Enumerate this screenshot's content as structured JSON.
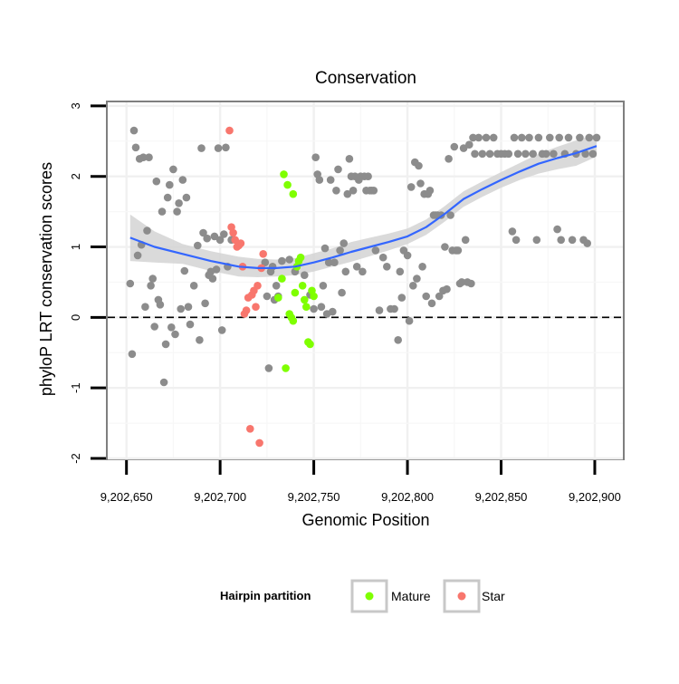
{
  "chart_data": {
    "type": "scatter",
    "title": "Conservation",
    "xlabel": "Genomic Position",
    "ylabel": "phyloP LRT conservation scores",
    "xlim": [
      9202640,
      9202915
    ],
    "ylim": [
      -2,
      3.05
    ],
    "x_ticks": [
      9202650,
      9202700,
      9202750,
      9202800,
      9202850,
      9202900
    ],
    "x_tick_labels": [
      "9,202,650",
      "9,202,700",
      "9,202,750",
      "9,202,800",
      "9,202,850",
      "9,202,900"
    ],
    "y_ticks": [
      -2,
      -1,
      0,
      1,
      2,
      3
    ],
    "y_tick_labels": [
      "-2",
      "-1",
      "0",
      "1",
      "2",
      "3"
    ],
    "reference_line": {
      "y": 0,
      "style": "dashed"
    },
    "legend": {
      "title": "Hairpin partition",
      "entries": [
        {
          "label": "Mature",
          "color": "#7fff00"
        },
        {
          "label": "Star",
          "color": "#f8766d"
        }
      ]
    },
    "colors": {
      "other": "#8c8c8c",
      "Mature": "#7fff00",
      "Star": "#f8766d",
      "smooth": "#3366ff",
      "band": "#d3d3d3"
    },
    "series": [
      {
        "name": "other",
        "points": [
          [
            9202652,
            0.48
          ],
          [
            9202653,
            -0.52
          ],
          [
            9202654,
            2.65
          ],
          [
            9202655,
            2.41
          ],
          [
            9202656,
            0.88
          ],
          [
            9202657,
            2.25
          ],
          [
            9202658,
            1.03
          ],
          [
            9202659,
            2.27
          ],
          [
            9202660,
            0.15
          ],
          [
            9202661,
            1.23
          ],
          [
            9202662,
            2.27
          ],
          [
            9202663,
            0.45
          ],
          [
            9202664,
            0.55
          ],
          [
            9202665,
            -0.13
          ],
          [
            9202666,
            1.93
          ],
          [
            9202667,
            0.25
          ],
          [
            9202668,
            0.18
          ],
          [
            9202669,
            1.5
          ],
          [
            9202670,
            -0.92
          ],
          [
            9202671,
            -0.38
          ],
          [
            9202672,
            1.7
          ],
          [
            9202673,
            1.88
          ],
          [
            9202674,
            -0.14
          ],
          [
            9202675,
            2.1
          ],
          [
            9202676,
            -0.24
          ],
          [
            9202677,
            1.5
          ],
          [
            9202678,
            1.62
          ],
          [
            9202679,
            0.12
          ],
          [
            9202680,
            1.95
          ],
          [
            9202681,
            0.66
          ],
          [
            9202682,
            1.7
          ],
          [
            9202683,
            0.15
          ],
          [
            9202684,
            -0.1
          ],
          [
            9202686,
            0.45
          ],
          [
            9202688,
            1.02
          ],
          [
            9202689,
            -0.32
          ],
          [
            9202690,
            2.4
          ],
          [
            9202691,
            1.2
          ],
          [
            9202692,
            0.2
          ],
          [
            9202693,
            1.12
          ],
          [
            9202694,
            0.6
          ],
          [
            9202695,
            0.65
          ],
          [
            9202696,
            0.55
          ],
          [
            9202697,
            1.15
          ],
          [
            9202698,
            0.68
          ],
          [
            9202699,
            2.4
          ],
          [
            9202700,
            1.1
          ],
          [
            9202701,
            -0.18
          ],
          [
            9202702,
            1.18
          ],
          [
            9202703,
            2.41
          ],
          [
            9202704,
            0.72
          ],
          [
            9202706,
            1.1
          ],
          [
            9202724,
            0.78
          ],
          [
            9202725,
            0.3
          ],
          [
            9202726,
            -0.72
          ],
          [
            9202727,
            0.65
          ],
          [
            9202728,
            0.72
          ],
          [
            9202729,
            0.25
          ],
          [
            9202730,
            0.45
          ],
          [
            9202731,
            0.3
          ],
          [
            9202733,
            0.8
          ],
          [
            9202737,
            0.82
          ],
          [
            9202740,
            0.65
          ],
          [
            9202745,
            0.6
          ],
          [
            9202748,
            0.32
          ],
          [
            9202750,
            0.12
          ],
          [
            9202751,
            2.27
          ],
          [
            9202752,
            2.03
          ],
          [
            9202753,
            1.95
          ],
          [
            9202754,
            0.15
          ],
          [
            9202755,
            0.45
          ],
          [
            9202756,
            0.98
          ],
          [
            9202757,
            0.05
          ],
          [
            9202758,
            0.78
          ],
          [
            9202759,
            1.95
          ],
          [
            9202760,
            0.08
          ],
          [
            9202761,
            0.78
          ],
          [
            9202762,
            1.8
          ],
          [
            9202763,
            2.1
          ],
          [
            9202764,
            0.95
          ],
          [
            9202765,
            0.35
          ],
          [
            9202766,
            1.05
          ],
          [
            9202767,
            0.65
          ],
          [
            9202768,
            1.75
          ],
          [
            9202769,
            2.25
          ],
          [
            9202770,
            2.0
          ],
          [
            9202771,
            1.8
          ],
          [
            9202772,
            2.0
          ],
          [
            9202773,
            0.72
          ],
          [
            9202774,
            1.95
          ],
          [
            9202775,
            2.0
          ],
          [
            9202776,
            0.65
          ],
          [
            9202777,
            2.0
          ],
          [
            9202778,
            1.8
          ],
          [
            9202779,
            2.0
          ],
          [
            9202780,
            1.8
          ],
          [
            9202781,
            1.8
          ],
          [
            9202782,
            1.8
          ],
          [
            9202783,
            0.95
          ],
          [
            9202785,
            0.1
          ],
          [
            9202787,
            0.85
          ],
          [
            9202789,
            0.72
          ],
          [
            9202791,
            0.12
          ],
          [
            9202793,
            0.12
          ],
          [
            9202795,
            -0.32
          ],
          [
            9202796,
            0.65
          ],
          [
            9202797,
            0.28
          ],
          [
            9202798,
            0.95
          ],
          [
            9202800,
            0.88
          ],
          [
            9202801,
            -0.05
          ],
          [
            9202802,
            1.85
          ],
          [
            9202803,
            0.45
          ],
          [
            9202804,
            2.2
          ],
          [
            9202805,
            0.55
          ],
          [
            9202806,
            2.15
          ],
          [
            9202807,
            1.9
          ],
          [
            9202808,
            0.72
          ],
          [
            9202809,
            1.75
          ],
          [
            9202810,
            0.3
          ],
          [
            9202811,
            1.75
          ],
          [
            9202812,
            1.8
          ],
          [
            9202813,
            0.2
          ],
          [
            9202814,
            1.45
          ],
          [
            9202815,
            1.45
          ],
          [
            9202816,
            1.45
          ],
          [
            9202817,
            0.3
          ],
          [
            9202818,
            1.45
          ],
          [
            9202819,
            0.38
          ],
          [
            9202820,
            1.0
          ],
          [
            9202821,
            0.4
          ],
          [
            9202822,
            2.25
          ],
          [
            9202823,
            1.45
          ],
          [
            9202824,
            0.95
          ],
          [
            9202825,
            2.42
          ],
          [
            9202826,
            0.95
          ],
          [
            9202827,
            0.95
          ],
          [
            9202828,
            0.48
          ],
          [
            9202829,
            0.5
          ],
          [
            9202830,
            2.4
          ],
          [
            9202831,
            1.1
          ],
          [
            9202832,
            0.5
          ],
          [
            9202833,
            2.45
          ],
          [
            9202834,
            0.48
          ],
          [
            9202835,
            2.55
          ],
          [
            9202836,
            2.32
          ],
          [
            9202838,
            2.55
          ],
          [
            9202840,
            2.32
          ],
          [
            9202842,
            2.55
          ],
          [
            9202844,
            2.32
          ],
          [
            9202846,
            2.55
          ],
          [
            9202848,
            2.32
          ],
          [
            9202850,
            2.32
          ],
          [
            9202852,
            2.32
          ],
          [
            9202854,
            2.32
          ],
          [
            9202856,
            1.22
          ],
          [
            9202857,
            2.55
          ],
          [
            9202858,
            1.1
          ],
          [
            9202859,
            2.32
          ],
          [
            9202861,
            2.55
          ],
          [
            9202863,
            2.32
          ],
          [
            9202865,
            2.55
          ],
          [
            9202867,
            2.32
          ],
          [
            9202869,
            1.1
          ],
          [
            9202870,
            2.55
          ],
          [
            9202872,
            2.32
          ],
          [
            9202874,
            2.32
          ],
          [
            9202876,
            2.55
          ],
          [
            9202878,
            2.32
          ],
          [
            9202880,
            1.25
          ],
          [
            9202881,
            2.55
          ],
          [
            9202882,
            1.1
          ],
          [
            9202884,
            2.32
          ],
          [
            9202886,
            2.55
          ],
          [
            9202888,
            1.1
          ],
          [
            9202890,
            2.32
          ],
          [
            9202892,
            2.55
          ],
          [
            9202894,
            1.1
          ],
          [
            9202895,
            2.32
          ],
          [
            9202896,
            1.05
          ],
          [
            9202897,
            2.55
          ],
          [
            9202899,
            2.32
          ],
          [
            9202901,
            2.55
          ]
        ]
      },
      {
        "name": "Mature",
        "points": [
          [
            9202733,
            0.55
          ],
          [
            9202734,
            2.03
          ],
          [
            9202735,
            -0.72
          ],
          [
            9202736,
            1.88
          ],
          [
            9202737,
            0.05
          ],
          [
            9202738,
            0.0
          ],
          [
            9202739,
            -0.05
          ],
          [
            9202740,
            0.35
          ],
          [
            9202741,
            0.72
          ],
          [
            9202742,
            0.8
          ],
          [
            9202743,
            0.85
          ],
          [
            9202744,
            0.45
          ],
          [
            9202745,
            0.25
          ],
          [
            9202746,
            0.15
          ],
          [
            9202747,
            -0.35
          ],
          [
            9202748,
            -0.38
          ],
          [
            9202749,
            0.38
          ],
          [
            9202750,
            0.3
          ],
          [
            9202739,
            1.75
          ],
          [
            9202731,
            0.28
          ]
        ]
      },
      {
        "name": "Star",
        "points": [
          [
            9202705,
            2.65
          ],
          [
            9202706,
            1.28
          ],
          [
            9202707,
            1.2
          ],
          [
            9202708,
            1.1
          ],
          [
            9202709,
            1.0
          ],
          [
            9202710,
            1.02
          ],
          [
            9202711,
            1.05
          ],
          [
            9202712,
            0.72
          ],
          [
            9202713,
            0.05
          ],
          [
            9202714,
            0.1
          ],
          [
            9202715,
            0.28
          ],
          [
            9202716,
            -1.58
          ],
          [
            9202717,
            0.32
          ],
          [
            9202718,
            0.38
          ],
          [
            9202719,
            0.15
          ],
          [
            9202720,
            0.45
          ],
          [
            9202721,
            -1.78
          ],
          [
            9202722,
            0.7
          ],
          [
            9202723,
            0.9
          ]
        ]
      }
    ],
    "smooth": {
      "method": "loess",
      "x": [
        9202652,
        9202665,
        9202680,
        9202695,
        9202710,
        9202720,
        9202730,
        9202740,
        9202750,
        9202760,
        9202770,
        9202780,
        9202790,
        9202800,
        9202810,
        9202820,
        9202830,
        9202840,
        9202850,
        9202860,
        9202870,
        9202880,
        9202890,
        9202901
      ],
      "y": [
        1.13,
        1.0,
        0.9,
        0.8,
        0.72,
        0.7,
        0.7,
        0.72,
        0.78,
        0.85,
        0.93,
        1.0,
        1.07,
        1.15,
        1.28,
        1.47,
        1.68,
        1.82,
        1.95,
        2.07,
        2.18,
        2.26,
        2.33,
        2.43
      ],
      "lower": [
        0.8,
        0.78,
        0.76,
        0.66,
        0.58,
        0.57,
        0.58,
        0.6,
        0.65,
        0.72,
        0.79,
        0.87,
        0.95,
        1.04,
        1.17,
        1.36,
        1.57,
        1.71,
        1.84,
        1.95,
        2.04,
        2.1,
        2.15,
        2.28
      ],
      "upper": [
        1.46,
        1.22,
        1.04,
        0.94,
        0.86,
        0.83,
        0.82,
        0.84,
        0.91,
        0.98,
        1.07,
        1.13,
        1.19,
        1.26,
        1.39,
        1.58,
        1.79,
        1.93,
        2.06,
        2.19,
        2.32,
        2.42,
        2.51,
        2.6
      ]
    }
  }
}
